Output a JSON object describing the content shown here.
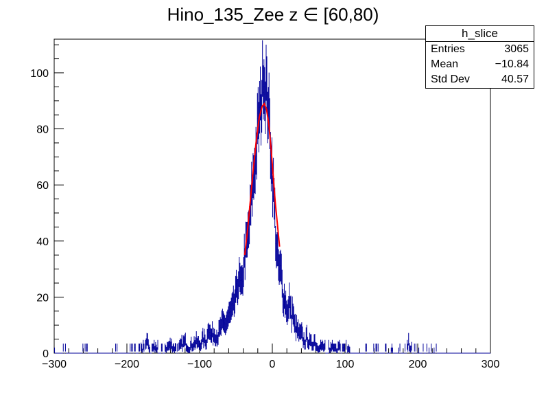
{
  "title": "Hino_135_Zee z  ∈ [60,80)",
  "stats": {
    "name": "h_slice",
    "rows": [
      {
        "label": "Entries",
        "value": "3065"
      },
      {
        "label": "Mean",
        "value": "−10.84"
      },
      {
        "label": "Std Dev",
        "value": "40.57"
      }
    ]
  },
  "colors": {
    "hist": "#000099",
    "fit": "#ff0000",
    "frame": "#000000"
  },
  "chart_data": {
    "type": "histogram",
    "xlim": [
      -300,
      300
    ],
    "ylim": [
      0,
      112
    ],
    "xticks": [
      -300,
      -200,
      -100,
      0,
      100,
      200,
      300
    ],
    "yticks": [
      0,
      20,
      40,
      60,
      80,
      100
    ],
    "xtick_labels": [
      "−300",
      "−200",
      "−100",
      "0",
      "100",
      "200",
      "300"
    ],
    "ytick_labels": [
      "0",
      "20",
      "40",
      "60",
      "80",
      "100"
    ],
    "series": [
      {
        "kind": "histogram",
        "bin_width": 1,
        "points": [
          [
            -300,
            0
          ],
          [
            -290,
            1
          ],
          [
            -280,
            0
          ],
          [
            -275,
            1
          ],
          [
            -270,
            0
          ],
          [
            -262,
            1
          ],
          [
            -255,
            1
          ],
          [
            -250,
            0
          ],
          [
            -240,
            0
          ],
          [
            -235,
            1
          ],
          [
            -228,
            0
          ],
          [
            -220,
            0
          ],
          [
            -214,
            1
          ],
          [
            -208,
            0
          ],
          [
            -200,
            0
          ],
          [
            -195,
            1
          ],
          [
            -190,
            1
          ],
          [
            -185,
            0
          ],
          [
            -180,
            2
          ],
          [
            -175,
            1
          ],
          [
            -172,
            4
          ],
          [
            -170,
            2
          ],
          [
            -165,
            1
          ],
          [
            -160,
            2
          ],
          [
            -155,
            1
          ],
          [
            -150,
            1
          ],
          [
            -145,
            2
          ],
          [
            -140,
            3
          ],
          [
            -135,
            2
          ],
          [
            -130,
            1
          ],
          [
            -125,
            3
          ],
          [
            -120,
            4
          ],
          [
            -115,
            2
          ],
          [
            -110,
            3
          ],
          [
            -105,
            4
          ],
          [
            -100,
            3
          ],
          [
            -95,
            5
          ],
          [
            -90,
            4
          ],
          [
            -88,
            11
          ],
          [
            -85,
            6
          ],
          [
            -80,
            7
          ],
          [
            -75,
            6
          ],
          [
            -72,
            8
          ],
          [
            -70,
            10
          ],
          [
            -65,
            10
          ],
          [
            -60,
            13
          ],
          [
            -55,
            15
          ],
          [
            -52,
            18
          ],
          [
            -50,
            20
          ],
          [
            -48,
            25
          ],
          [
            -45,
            26
          ],
          [
            -42,
            22
          ],
          [
            -40,
            30
          ],
          [
            -38,
            35
          ],
          [
            -35,
            38
          ],
          [
            -32,
            45
          ],
          [
            -30,
            50
          ],
          [
            -28,
            58
          ],
          [
            -26,
            62
          ],
          [
            -24,
            68
          ],
          [
            -22,
            72
          ],
          [
            -20,
            80
          ],
          [
            -18,
            84
          ],
          [
            -16,
            88
          ],
          [
            -14,
            92
          ],
          [
            -12,
            104
          ],
          [
            -11,
            98
          ],
          [
            -10,
            90
          ],
          [
            -9,
            100
          ],
          [
            -8,
            94
          ],
          [
            -7,
            86
          ],
          [
            -6,
            92
          ],
          [
            -5,
            88
          ],
          [
            -4,
            80
          ],
          [
            -3,
            78
          ],
          [
            -2,
            72
          ],
          [
            -1,
            70
          ],
          [
            0,
            64
          ],
          [
            1,
            60
          ],
          [
            2,
            56
          ],
          [
            3,
            52
          ],
          [
            4,
            46
          ],
          [
            5,
            40
          ],
          [
            6,
            36
          ],
          [
            8,
            32
          ],
          [
            10,
            28
          ],
          [
            12,
            30
          ],
          [
            14,
            22
          ],
          [
            16,
            20
          ],
          [
            18,
            18
          ],
          [
            20,
            16
          ],
          [
            22,
            14
          ],
          [
            24,
            20
          ],
          [
            26,
            12
          ],
          [
            28,
            16
          ],
          [
            30,
            10
          ],
          [
            32,
            9
          ],
          [
            35,
            8
          ],
          [
            38,
            6
          ],
          [
            40,
            7
          ],
          [
            42,
            5
          ],
          [
            45,
            4
          ],
          [
            48,
            6
          ],
          [
            50,
            4
          ],
          [
            55,
            3
          ],
          [
            58,
            5
          ],
          [
            60,
            3
          ],
          [
            62,
            2
          ],
          [
            65,
            3
          ],
          [
            70,
            2
          ],
          [
            75,
            1
          ],
          [
            80,
            2
          ],
          [
            85,
            1
          ],
          [
            90,
            2
          ],
          [
            95,
            1
          ],
          [
            100,
            1
          ],
          [
            105,
            2
          ],
          [
            110,
            1
          ],
          [
            115,
            1
          ],
          [
            120,
            0
          ],
          [
            125,
            1
          ],
          [
            130,
            1
          ],
          [
            135,
            0
          ],
          [
            140,
            1
          ],
          [
            145,
            1
          ],
          [
            150,
            0
          ],
          [
            155,
            1
          ],
          [
            160,
            0
          ],
          [
            165,
            1
          ],
          [
            170,
            0
          ],
          [
            180,
            1
          ],
          [
            185,
            1
          ],
          [
            188,
            4
          ],
          [
            190,
            2
          ],
          [
            195,
            1
          ],
          [
            200,
            1
          ],
          [
            205,
            0
          ],
          [
            210,
            1
          ],
          [
            215,
            0
          ],
          [
            220,
            1
          ],
          [
            230,
            0
          ],
          [
            240,
            0
          ],
          [
            250,
            0
          ],
          [
            260,
            0
          ],
          [
            270,
            0
          ],
          [
            280,
            0
          ],
          [
            290,
            0
          ],
          [
            299,
            0
          ]
        ]
      },
      {
        "kind": "fit",
        "name": "",
        "points": [
          [
            -38,
            35
          ],
          [
            -34,
            44
          ],
          [
            -30,
            55
          ],
          [
            -26,
            66
          ],
          [
            -22,
            76
          ],
          [
            -18,
            84
          ],
          [
            -14,
            88
          ],
          [
            -11,
            89
          ],
          [
            -8,
            87
          ],
          [
            -5,
            82
          ],
          [
            -2,
            74
          ],
          [
            1,
            64
          ],
          [
            4,
            54
          ],
          [
            7,
            46
          ],
          [
            10,
            38
          ]
        ]
      }
    ]
  }
}
